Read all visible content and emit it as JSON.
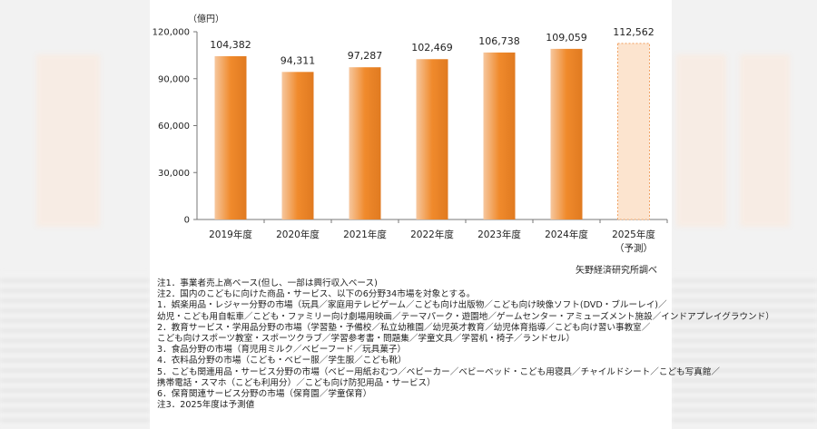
{
  "chart_data": {
    "type": "bar",
    "categories": [
      "2019年度",
      "2020年度",
      "2021年度",
      "2022年度",
      "2023年度",
      "2024年度",
      "2025年度"
    ],
    "category_sublabels": [
      "",
      "",
      "",
      "",
      "",
      "",
      "（予測）"
    ],
    "values": [
      104382,
      94311,
      97287,
      102469,
      106738,
      109059,
      112562
    ],
    "value_labels": [
      "104,382",
      "94,311",
      "97,287",
      "102,469",
      "106,738",
      "109,059",
      "112,562"
    ],
    "forecast_flags": [
      false,
      false,
      false,
      false,
      false,
      false,
      true
    ],
    "ylim": [
      0,
      120000
    ],
    "yticks": [
      0,
      30000,
      60000,
      90000,
      120000
    ],
    "ytick_labels": [
      "0",
      "30,000",
      "60,000",
      "90,000",
      "120,000"
    ],
    "unit_label": "（億円）",
    "grid": false,
    "colors": {
      "bar_top": "#f6c79e",
      "bar_mid": "#f08a2c",
      "bar_edge": "#e07a20",
      "forecast_fill": "#fce4cf",
      "forecast_edge": "#f0a060"
    }
  },
  "source": "矢野経済研究所調べ",
  "notes": [
    "注1．事業者売上高ベース(但し、一部は興行収入ベース)",
    "注2．国内のこどもに向けた商品・サービス、以下の6分野34市場を対象とする。",
    "1．娯楽用品・レジャー分野の市場（玩具／家庭用テレビゲーム／こども向け出版物／こども向け映像ソフト(DVD・ブルーレイ)／",
    "幼児・こども用自転車／こども・ファミリー向け劇場用映画／テーマパーク・遊園地／ゲームセンター・アミューズメント施設／インドアプレイグラウンド）",
    "2．教育サービス・学用品分野の市場（学習塾・予備校／私立幼稚園／幼児英才教育／幼児体育指導／こども向け習い事教室／",
    "こども向けスポーツ教室・スポーツクラブ／学習参考書・問題集／学童文具／学習机・椅子／ランドセル）",
    "3．食品分野の市場（育児用ミルク／ベビーフード／玩具菓子）",
    "4．衣料品分野の市場（こども・ベビー服／学生服／こども靴）",
    "5．こども関連用品・サービス分野の市場（ベビー用紙おむつ／ベビーカー／ベビーベッド・こども用寝具／チャイルドシート／こども写真館／",
    "携帯電話・スマホ（こども利用分）／こども向け防犯用品・サービス）",
    "6．保育関連サービス分野の市場（保育園／学童保育）",
    "注3．2025年度は予測値"
  ]
}
